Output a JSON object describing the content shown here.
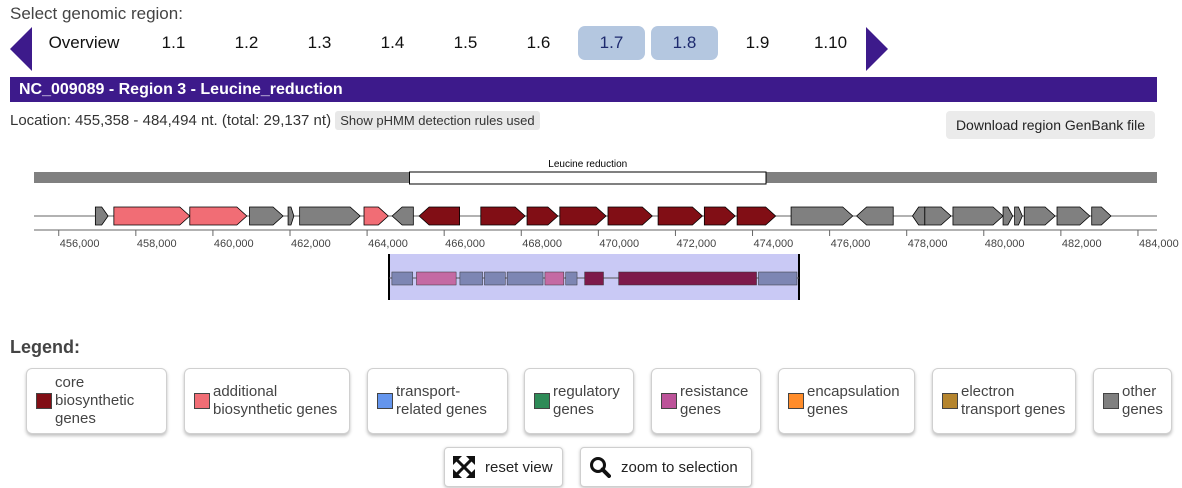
{
  "header": {
    "select_label": "Select genomic region:"
  },
  "region_tabs": [
    {
      "label": "Overview",
      "selected": false
    },
    {
      "label": "1.1",
      "selected": false
    },
    {
      "label": "1.2",
      "selected": false
    },
    {
      "label": "1.3",
      "selected": false
    },
    {
      "label": "1.4",
      "selected": false
    },
    {
      "label": "1.5",
      "selected": false
    },
    {
      "label": "1.6",
      "selected": false
    },
    {
      "label": "1.7",
      "selected": true
    },
    {
      "label": "1.8",
      "selected": true
    },
    {
      "label": "1.9",
      "selected": false
    },
    {
      "label": "1.10",
      "selected": false
    }
  ],
  "region": {
    "title": "NC_009089 - Region 3 - Leucine_reduction",
    "location": "Location: 455,358 - 484,494 nt. (total: 29,137 nt)",
    "pHMM_button": "Show pHMM detection rules used",
    "download_button": "Download region GenBank file"
  },
  "map": {
    "protocluster_label": "Leucine reduction",
    "range_start": 455358,
    "range_end": 484494,
    "protocluster": [
      465100,
      474350
    ],
    "ticks": [
      456000,
      458000,
      460000,
      462000,
      464000,
      466000,
      468000,
      470000,
      472000,
      474000,
      476000,
      478000,
      480000,
      482000,
      484000
    ],
    "tick_labels": [
      "456,000",
      "458,000",
      "460,000",
      "462,000",
      "464,000",
      "466,000",
      "468,000",
      "470,000",
      "472,000",
      "474,000",
      "476,000",
      "478,000",
      "480,000",
      "482,000",
      "484,000"
    ],
    "genes": [
      {
        "start": 456950,
        "end": 457280,
        "strand": 1,
        "type": "other"
      },
      {
        "start": 457430,
        "end": 459400,
        "strand": 1,
        "type": "additional"
      },
      {
        "start": 459400,
        "end": 460880,
        "strand": 1,
        "type": "additional"
      },
      {
        "start": 460950,
        "end": 461820,
        "strand": 1,
        "type": "other"
      },
      {
        "start": 461950,
        "end": 462100,
        "strand": 1,
        "type": "other"
      },
      {
        "start": 462250,
        "end": 463820,
        "strand": 1,
        "type": "other"
      },
      {
        "start": 463920,
        "end": 464550,
        "strand": 1,
        "type": "additional"
      },
      {
        "start": 464650,
        "end": 465200,
        "strand": -1,
        "type": "other"
      },
      {
        "start": 465350,
        "end": 466400,
        "strand": -1,
        "type": "core"
      },
      {
        "start": 466950,
        "end": 468100,
        "strand": 1,
        "type": "core"
      },
      {
        "start": 468150,
        "end": 468950,
        "strand": 1,
        "type": "core"
      },
      {
        "start": 469000,
        "end": 470200,
        "strand": 1,
        "type": "core"
      },
      {
        "start": 470250,
        "end": 471400,
        "strand": 1,
        "type": "core"
      },
      {
        "start": 471550,
        "end": 472700,
        "strand": 1,
        "type": "core"
      },
      {
        "start": 472750,
        "end": 473550,
        "strand": 1,
        "type": "core"
      },
      {
        "start": 473600,
        "end": 474600,
        "strand": 1,
        "type": "core"
      },
      {
        "start": 475000,
        "end": 476600,
        "strand": 1,
        "type": "other"
      },
      {
        "start": 476700,
        "end": 477650,
        "strand": -1,
        "type": "other"
      },
      {
        "start": 478150,
        "end": 478470,
        "strand": -1,
        "type": "other"
      },
      {
        "start": 478470,
        "end": 479150,
        "strand": 1,
        "type": "other"
      },
      {
        "start": 479200,
        "end": 480500,
        "strand": 1,
        "type": "other"
      },
      {
        "start": 480500,
        "end": 480750,
        "strand": 1,
        "type": "other"
      },
      {
        "start": 480800,
        "end": 481000,
        "strand": 1,
        "type": "other"
      },
      {
        "start": 481050,
        "end": 481850,
        "strand": 1,
        "type": "other"
      },
      {
        "start": 481900,
        "end": 482750,
        "strand": 1,
        "type": "other"
      },
      {
        "start": 482800,
        "end": 483300,
        "strand": 1,
        "type": "other"
      }
    ]
  },
  "legend": {
    "title": "Legend:",
    "items": [
      {
        "key": "core",
        "lines": [
          "core",
          "biosynthetic",
          "genes"
        ],
        "color": "#810e15"
      },
      {
        "key": "additional",
        "lines": [
          "additional",
          "biosynthetic genes"
        ],
        "color": "#f16d75"
      },
      {
        "key": "transport",
        "lines": [
          "transport-",
          "related genes"
        ],
        "color": "#6495ed"
      },
      {
        "key": "regulatory",
        "lines": [
          "regulatory",
          "genes"
        ],
        "color": "#2e8b57"
      },
      {
        "key": "resistance",
        "lines": [
          "resistance",
          "genes"
        ],
        "color": "#bc5399"
      },
      {
        "key": "encapsulation",
        "lines": [
          "encapsulation",
          "genes"
        ],
        "color": "#ff8c2a"
      },
      {
        "key": "electron",
        "lines": [
          "electron",
          "transport genes"
        ],
        "color": "#b5852e"
      },
      {
        "key": "other",
        "lines": [
          "other",
          "genes"
        ],
        "color": "#808080"
      }
    ]
  },
  "actions": {
    "reset_label": "reset view",
    "zoom_label": "zoom to selection"
  },
  "colors": {
    "accent": "#3d1a8b",
    "selected_tab": "#b4c7e0",
    "core": "#810e15",
    "additional": "#f16d75",
    "other": "#808080",
    "minimap_bg": "#c9c9f5"
  }
}
